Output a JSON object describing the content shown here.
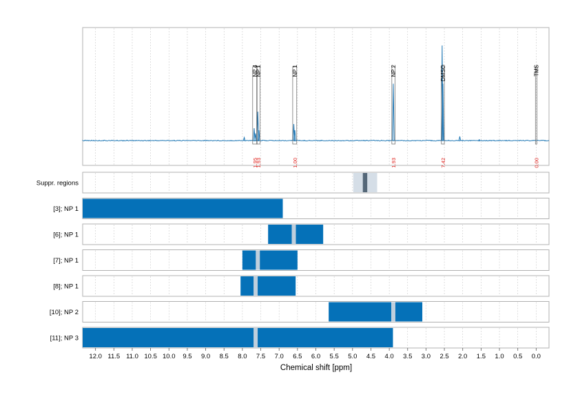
{
  "chart_data": {
    "type": "nmr-spectrum-with-assignment-ranges",
    "xlabel": "Chemical shift [ppm]",
    "xlim": [
      12.35,
      -0.35
    ],
    "x_ticks": [
      "12.0",
      "11.5",
      "11.0",
      "10.5",
      "10.0",
      "9.5",
      "9.0",
      "8.5",
      "8.0",
      "7.5",
      "7.0",
      "6.5",
      "6.0",
      "5.5",
      "5.0",
      "4.5",
      "4.0",
      "3.5",
      "3.0",
      "2.5",
      "2.0",
      "1.5",
      "1.0",
      "0.5",
      "0.0"
    ],
    "colors": {
      "spectrum": "#1f77b4",
      "range": "#0571b8",
      "highlight": "#bfcfdd",
      "suppression_dark": "#546778",
      "suppression_light": "#d5dee7",
      "integral": "#e0201b"
    },
    "spectrum_peaks": [
      {
        "ppm": 12.3,
        "h": 0.0
      },
      {
        "ppm": 7.95,
        "h": 0.03
      },
      {
        "ppm": 7.68,
        "h": 0.12
      },
      {
        "ppm": 7.64,
        "h": 0.07
      },
      {
        "ppm": 7.58,
        "h": 0.28
      },
      {
        "ppm": 7.55,
        "h": 0.1
      },
      {
        "ppm": 6.6,
        "h": 0.16
      },
      {
        "ppm": 6.57,
        "h": 0.1
      },
      {
        "ppm": 3.89,
        "h": 0.55
      },
      {
        "ppm": 2.56,
        "h": 0.92
      },
      {
        "ppm": 2.54,
        "h": 0.55
      },
      {
        "ppm": 2.08,
        "h": 0.04
      },
      {
        "ppm": 1.55,
        "h": 0.01
      },
      {
        "ppm": 0.0,
        "h": 0.0
      }
    ],
    "peak_annotations": [
      {
        "label": "NP 4",
        "ppm_min": 7.6,
        "ppm_max": 7.72,
        "integral": "1.95"
      },
      {
        "label": "NP 1",
        "ppm_min": 7.52,
        "ppm_max": 7.61,
        "integral": "1.93"
      },
      {
        "label": "NP 1",
        "ppm_min": 6.52,
        "ppm_max": 6.63,
        "integral": "1.00"
      },
      {
        "label": "NP 2",
        "ppm_min": 3.84,
        "ppm_max": 3.93,
        "integral": "1.93"
      },
      {
        "label": "DMSO",
        "ppm_min": 2.5,
        "ppm_max": 2.58,
        "integral": "7.42"
      },
      {
        "label": "TMS",
        "ppm_min": -0.02,
        "ppm_max": 0.02,
        "integral": "0.00"
      }
    ],
    "suppression": {
      "label": "Suppr. regions",
      "light": [
        4.98,
        4.33
      ],
      "dark": [
        4.72,
        4.6
      ]
    },
    "ranges": [
      {
        "label": "[3]; NP 1",
        "ppm_max": 12.35,
        "ppm_min": 6.9,
        "highlight": null
      },
      {
        "label": "[6]; NP 1",
        "ppm_max": 7.3,
        "ppm_min": 5.8,
        "highlight": 6.6
      },
      {
        "label": "[7]; NP 1",
        "ppm_max": 8.0,
        "ppm_min": 6.5,
        "highlight": 7.58
      },
      {
        "label": "[8]; NP 1",
        "ppm_max": 8.05,
        "ppm_min": 6.55,
        "highlight": 7.64
      },
      {
        "label": "[10]; NP 2",
        "ppm_max": 5.65,
        "ppm_min": 3.1,
        "highlight": 3.89
      },
      {
        "label": "[11]; NP 3",
        "ppm_max": 12.35,
        "ppm_min": 3.9,
        "highlight": 7.64
      }
    ]
  }
}
